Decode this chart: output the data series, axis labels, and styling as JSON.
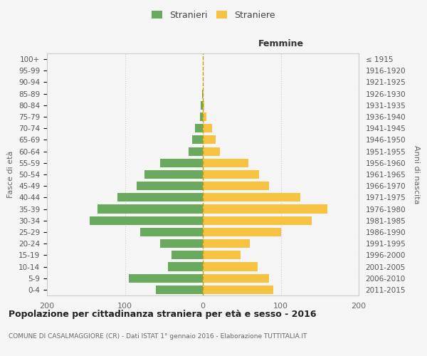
{
  "age_groups": [
    "0-4",
    "5-9",
    "10-14",
    "15-19",
    "20-24",
    "25-29",
    "30-34",
    "35-39",
    "40-44",
    "45-49",
    "50-54",
    "55-59",
    "60-64",
    "65-69",
    "70-74",
    "75-79",
    "80-84",
    "85-89",
    "90-94",
    "95-99",
    "100+"
  ],
  "birth_years": [
    "2011-2015",
    "2006-2010",
    "2001-2005",
    "1996-2000",
    "1991-1995",
    "1986-1990",
    "1981-1985",
    "1976-1980",
    "1971-1975",
    "1966-1970",
    "1961-1965",
    "1956-1960",
    "1951-1955",
    "1946-1950",
    "1941-1945",
    "1936-1940",
    "1931-1935",
    "1926-1930",
    "1921-1925",
    "1916-1920",
    "≤ 1915"
  ],
  "males": [
    60,
    95,
    45,
    40,
    55,
    80,
    145,
    135,
    110,
    85,
    75,
    55,
    18,
    14,
    10,
    4,
    3,
    1,
    0,
    0,
    0
  ],
  "females": [
    90,
    85,
    70,
    48,
    60,
    100,
    140,
    160,
    125,
    85,
    72,
    58,
    22,
    16,
    12,
    5,
    2,
    1,
    0,
    0,
    0
  ],
  "male_color": "#6aaa5f",
  "female_color": "#f5c242",
  "xlabel_right": "Femmine",
  "ylabel_left": "Fasce di età",
  "ylabel_right": "Anni di nascita",
  "legend_male": "Stranieri",
  "legend_female": "Straniere",
  "title": "Popolazione per cittadinanza straniera per età e sesso - 2016",
  "subtitle": "COMUNE DI CASALMAGGIORE (CR) - Dati ISTAT 1° gennaio 2016 - Elaborazione TUTTITALIA.IT",
  "xlim": 200,
  "background_color": "#f5f5f5",
  "grid_color": "#cccccc",
  "bar_height": 0.75,
  "dashed_line_color": "#c8a000",
  "xticks": [
    -200,
    -100,
    0,
    100,
    200
  ],
  "xticklabels": [
    "200",
    "100",
    "0",
    "100",
    "200"
  ]
}
